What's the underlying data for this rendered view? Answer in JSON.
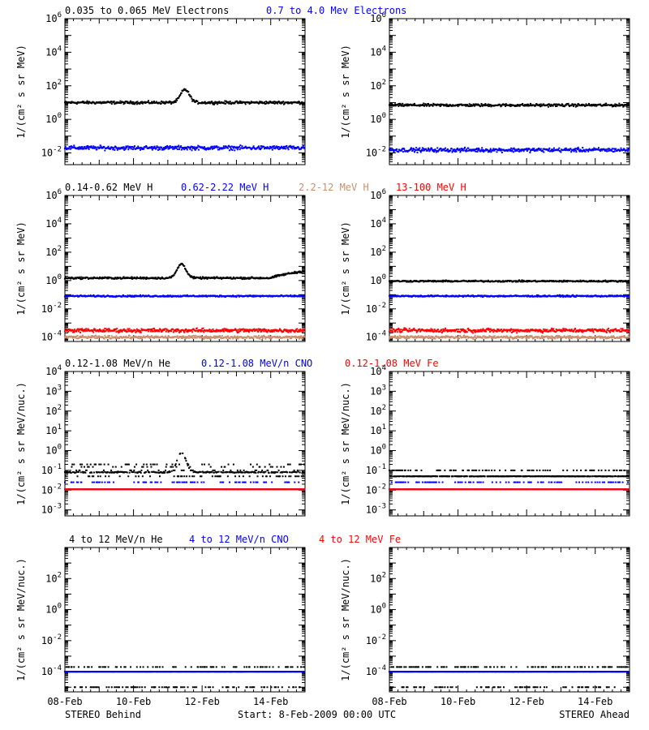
{
  "footer": {
    "left": "STEREO Behind",
    "center": "Start:  8-Feb-2009 00:00 UTC",
    "right": "STEREO Ahead"
  },
  "x_ticks": [
    "08-Feb",
    "10-Feb",
    "12-Feb",
    "14-Feb"
  ],
  "colors": {
    "black": "#000000",
    "blue": "#0000ff",
    "red": "#ff0000",
    "tan": "#c8906e"
  },
  "chart_data": [
    {
      "type": "scatter",
      "row": 0,
      "legend": [
        {
          "label": "0.035 to 0.065 MeV Electrons",
          "color": "#000000"
        },
        {
          "label": "0.7 to 4.0 Mev Electrons",
          "color": "#0000ff"
        }
      ],
      "ylabel": "1/(cm² s sr MeV)",
      "ylog": true,
      "ylim": [
        0.002,
        1000000
      ],
      "yticks": [
        {
          "v": 1000000,
          "b": "10",
          "e": "6"
        },
        {
          "v": 10000,
          "b": "10",
          "e": "4"
        },
        {
          "v": 100,
          "b": "10",
          "e": "2"
        },
        {
          "v": 1,
          "b": "10",
          "e": "0"
        },
        {
          "v": 0.01,
          "b": "10",
          "e": "-2"
        }
      ],
      "xlim_days": [
        8,
        15
      ],
      "panels": [
        {
          "name": "behind",
          "series": [
            {
              "name": "0.035 to 0.065 MeV Electrons",
              "color": "#000000",
              "level": 10,
              "spread": 0.12,
              "bursts": [
                {
                  "x": 11.5,
                  "peak": 60
                }
              ]
            },
            {
              "name": "0.7 to 4.0 Mev Electrons",
              "color": "#0000ff",
              "level": 0.02,
              "spread": 0.18
            }
          ]
        },
        {
          "name": "ahead",
          "series": [
            {
              "name": "0.035 to 0.065 MeV Electrons",
              "color": "#000000",
              "level": 7,
              "spread": 0.12
            },
            {
              "name": "0.7 to 4.0 Mev Electrons",
              "color": "#0000ff",
              "level": 0.015,
              "spread": 0.18
            }
          ]
        }
      ]
    },
    {
      "type": "scatter",
      "row": 1,
      "legend": [
        {
          "label": "0.14-0.62 MeV H",
          "color": "#000000"
        },
        {
          "label": "0.62-2.22 MeV H",
          "color": "#0000ff"
        },
        {
          "label": "2.2-12 MeV H",
          "color": "#c8906e"
        },
        {
          "label": "13-100 MeV H",
          "color": "#ff0000"
        }
      ],
      "ylabel": "1/(cm² s sr MeV)",
      "ylog": true,
      "ylim": [
        5e-05,
        1000000
      ],
      "yticks": [
        {
          "v": 1000000,
          "b": "10",
          "e": "6"
        },
        {
          "v": 10000,
          "b": "10",
          "e": "4"
        },
        {
          "v": 100,
          "b": "10",
          "e": "2"
        },
        {
          "v": 1,
          "b": "10",
          "e": "0"
        },
        {
          "v": 0.01,
          "b": "10",
          "e": "-2"
        },
        {
          "v": 0.0001,
          "b": "10",
          "e": "-4"
        }
      ],
      "xlim_days": [
        8,
        15
      ],
      "panels": [
        {
          "name": "behind",
          "series": [
            {
              "name": "0.14-0.62 MeV H",
              "color": "#000000",
              "level": 1.5,
              "spread": 0.1,
              "bursts": [
                {
                  "x": 11.4,
                  "peak": 15
                }
              ],
              "rise_end": 3
            },
            {
              "name": "0.62-2.22 MeV H",
              "color": "#0000ff",
              "level": 0.08,
              "spread": 0.08
            },
            {
              "name": "2.2-12 MeV H",
              "color": "#c8906e",
              "level": 0.0001,
              "spread": 0.15
            },
            {
              "name": "13-100 MeV H",
              "color": "#ff0000",
              "level": 0.0003,
              "spread": 0.2
            }
          ]
        },
        {
          "name": "ahead",
          "series": [
            {
              "name": "0.14-0.62 MeV H",
              "color": "#000000",
              "level": 0.9,
              "spread": 0.08
            },
            {
              "name": "0.62-2.22 MeV H",
              "color": "#0000ff",
              "level": 0.08,
              "spread": 0.08
            },
            {
              "name": "2.2-12 MeV H",
              "color": "#c8906e",
              "level": 0.0001,
              "spread": 0.15
            },
            {
              "name": "13-100 MeV H",
              "color": "#ff0000",
              "level": 0.0003,
              "spread": 0.2
            }
          ]
        }
      ]
    },
    {
      "type": "scatter",
      "row": 2,
      "legend": [
        {
          "label": "0.12-1.08 MeV/n He",
          "color": "#000000"
        },
        {
          "label": "0.12-1.08 MeV/n CNO",
          "color": "#0000ff"
        },
        {
          "label": "0.12-1.08 MeV Fe",
          "color": "#ff0000"
        }
      ],
      "ylabel": "1/(cm² s sr MeV/nuc.)",
      "ylog": true,
      "ylim": [
        0.0005,
        10000
      ],
      "yticks": [
        {
          "v": 10000,
          "b": "10",
          "e": "4"
        },
        {
          "v": 1000,
          "b": "10",
          "e": "3"
        },
        {
          "v": 100,
          "b": "10",
          "e": "2"
        },
        {
          "v": 10,
          "b": "10",
          "e": "1"
        },
        {
          "v": 1,
          "b": "10",
          "e": "0"
        },
        {
          "v": 0.1,
          "b": "10",
          "e": "-1"
        },
        {
          "v": 0.01,
          "b": "10",
          "e": "-2"
        },
        {
          "v": 0.001,
          "b": "10",
          "e": "-3"
        }
      ],
      "xlim_days": [
        8,
        15
      ],
      "panels": [
        {
          "name": "behind",
          "series": [
            {
              "name": "0.12-1.08 MeV/n He",
              "color": "#000000",
              "level": 0.08,
              "spread": 0.15,
              "bursts": [
                {
                  "x": 11.4,
                  "peak": 0.8
                }
              ],
              "quantized": [
                0.05,
                0.1,
                0.15,
                0.2
              ]
            },
            {
              "name": "0.12-1.08 MeV/n CNO",
              "color": "#0000ff",
              "level": 0.011,
              "spread": 0.02,
              "quantized": [
                0.011,
                0.025
              ]
            },
            {
              "name": "0.12-1.08 MeV Fe",
              "color": "#ff0000",
              "level": 0.011,
              "spread": 0.01,
              "quantized": [
                0.011
              ]
            }
          ]
        },
        {
          "name": "ahead",
          "series": [
            {
              "name": "0.12-1.08 MeV/n He",
              "color": "#000000",
              "level": 0.05,
              "spread": 0.05,
              "quantized": [
                0.05,
                0.1
              ]
            },
            {
              "name": "0.12-1.08 MeV/n CNO",
              "color": "#0000ff",
              "level": 0.011,
              "spread": 0.02,
              "quantized": [
                0.011,
                0.025
              ]
            },
            {
              "name": "0.12-1.08 MeV Fe",
              "color": "#ff0000",
              "level": 0.011,
              "spread": 0.01,
              "quantized": [
                0.011
              ]
            }
          ]
        }
      ]
    },
    {
      "type": "scatter",
      "row": 3,
      "legend": [
        {
          "label": "4 to 12 MeV/n He",
          "color": "#000000"
        },
        {
          "label": "4 to 12 MeV/n CNO",
          "color": "#0000ff"
        },
        {
          "label": "4 to 12 MeV Fe",
          "color": "#ff0000"
        }
      ],
      "ylabel": "1/(cm² s sr MeV/nuc.)",
      "ylog": true,
      "ylim": [
        5e-06,
        10000
      ],
      "yticks": [
        {
          "v": 100,
          "b": "10",
          "e": "2"
        },
        {
          "v": 1,
          "b": "10",
          "e": "0"
        },
        {
          "v": 0.01,
          "b": "10",
          "e": "-2"
        },
        {
          "v": 0.0001,
          "b": "10",
          "e": "-4"
        }
      ],
      "xlim_days": [
        8,
        15
      ],
      "panels": [
        {
          "name": "behind",
          "series": [
            {
              "name": "4 to 12 MeV/n He",
              "color": "#000000",
              "level": 0.0001,
              "spread": 0.02,
              "quantized": [
                0.0002,
                1e-05
              ]
            },
            {
              "name": "4 to 12 MeV/n CNO",
              "color": "#0000ff",
              "level": 0.0001,
              "spread": 0.005,
              "quantized": [
                0.0001
              ]
            }
          ]
        },
        {
          "name": "ahead",
          "series": [
            {
              "name": "4 to 12 MeV/n He",
              "color": "#000000",
              "level": 0.0001,
              "spread": 0.02,
              "quantized": [
                0.0002,
                1e-05
              ]
            },
            {
              "name": "4 to 12 MeV/n CNO",
              "color": "#0000ff",
              "level": 0.0001,
              "spread": 0.005,
              "quantized": [
                0.0001
              ]
            }
          ]
        }
      ]
    }
  ]
}
